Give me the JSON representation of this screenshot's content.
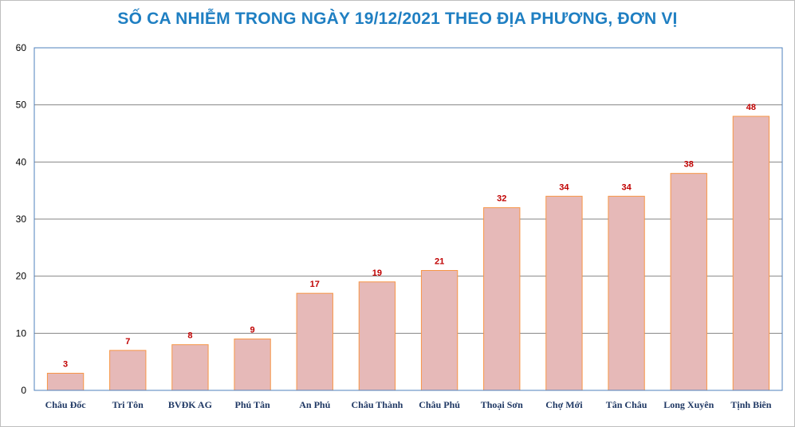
{
  "chart_data": {
    "type": "bar",
    "title": "SỐ CA NHIỄM TRONG NGÀY 19/12/2021 THEO ĐỊA PHƯƠNG, ĐƠN VỊ",
    "categories": [
      "Châu Đốc",
      "Tri Tôn",
      "BVĐK AG",
      "Phú Tân",
      "An Phú",
      "Châu Thành",
      "Châu Phú",
      "Thoại  Sơn",
      "Chợ Mới",
      "Tân Châu",
      "Long Xuyên",
      "Tịnh Biên"
    ],
    "values": [
      3,
      7,
      8,
      9,
      17,
      19,
      21,
      32,
      34,
      34,
      38,
      48
    ],
    "ylim": [
      0,
      60
    ],
    "yticks": [
      0,
      10,
      20,
      30,
      40,
      50,
      60
    ],
    "grid": true,
    "bar_color": "#e6b9b8",
    "bar_edge_color": "#f79646",
    "label_color": "#c00000",
    "title_color": "#1f7fc2"
  }
}
